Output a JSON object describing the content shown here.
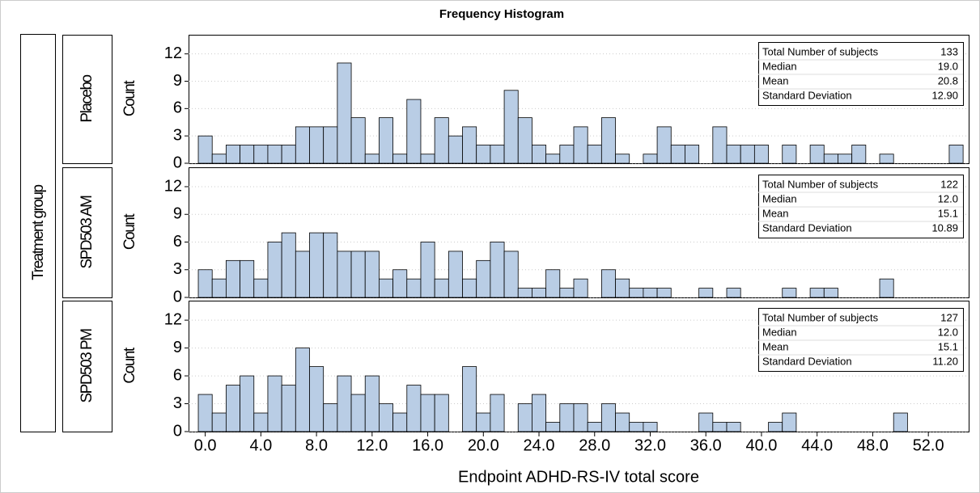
{
  "chart_data": {
    "type": "histogram",
    "title": "Frequency Histogram",
    "x_label": "Endpoint ADHD-RS-IV total score",
    "group_label": "Treatment group",
    "y_label": "Count",
    "color": "#b9cde5",
    "xlim": [
      -1.2,
      54.9
    ],
    "xticks": [
      {
        "value": 0,
        "label": "0.0"
      },
      {
        "value": 4,
        "label": "4.0"
      },
      {
        "value": 8,
        "label": "8.0"
      },
      {
        "value": 12,
        "label": "12.0"
      },
      {
        "value": 16,
        "label": "16.0"
      },
      {
        "value": 20,
        "label": "20.0"
      },
      {
        "value": 24,
        "label": "24.0"
      },
      {
        "value": 28,
        "label": "28.0"
      },
      {
        "value": 32,
        "label": "32.0"
      },
      {
        "value": 36,
        "label": "36.0"
      },
      {
        "value": 40,
        "label": "40.0"
      },
      {
        "value": 44,
        "label": "44.0"
      },
      {
        "value": 48,
        "label": "48.0"
      },
      {
        "value": 52,
        "label": "52.0"
      }
    ],
    "ylim": [
      0,
      14.1
    ],
    "yticks": [
      0,
      3,
      6,
      9,
      12
    ],
    "grid": true,
    "bins": [
      -0.5,
      0.5,
      1.5,
      2.5,
      3.5,
      4.5,
      5.5,
      6.5,
      7.5,
      8.5,
      9.5,
      10.5,
      11.5,
      12.5,
      13.5,
      14.5,
      15.5,
      16.5,
      17.5,
      18.5,
      19.5,
      20.5,
      21.5,
      22.5,
      23.5,
      24.5,
      25.5,
      26.5,
      27.5,
      28.5,
      29.5,
      30.5,
      31.5,
      32.5,
      33.5,
      34.5,
      35.5,
      36.5,
      37.5,
      38.5,
      39.5,
      40.5,
      41.5,
      42.5,
      43.5,
      44.5,
      45.5,
      46.5,
      47.5,
      48.5,
      49.5,
      50.5,
      51.5,
      52.5,
      53.5,
      54.5
    ],
    "panels": [
      {
        "name": "Placebo",
        "values": [
          3,
          1,
          2,
          2,
          2,
          2,
          2,
          4,
          4,
          4,
          11,
          5,
          1,
          5,
          1,
          7,
          1,
          5,
          3,
          4,
          2,
          2,
          8,
          5,
          2,
          1,
          2,
          4,
          2,
          5,
          1,
          0,
          1,
          4,
          2,
          2,
          0,
          4,
          2,
          2,
          2,
          0,
          2,
          0,
          2,
          1,
          1,
          2,
          0,
          1,
          0,
          0,
          0,
          0,
          2
        ],
        "stats": [
          [
            "Total Number of subjects",
            "133"
          ],
          [
            "Median",
            "19.0"
          ],
          [
            "Mean",
            "20.8"
          ],
          [
            "Standard Deviation",
            "12.90"
          ]
        ]
      },
      {
        "name": "SPD503 AM",
        "values": [
          3,
          2,
          4,
          4,
          2,
          6,
          7,
          5,
          7,
          7,
          5,
          5,
          5,
          2,
          3,
          2,
          6,
          2,
          5,
          2,
          4,
          6,
          5,
          1,
          1,
          3,
          1,
          2,
          0,
          3,
          2,
          1,
          1,
          1,
          0,
          0,
          1,
          0,
          1,
          0,
          0,
          0,
          1,
          0,
          1,
          1,
          0,
          0,
          0,
          2,
          0,
          0,
          0,
          0,
          0
        ],
        "stats": [
          [
            "Total Number of subjects",
            "122"
          ],
          [
            "Median",
            "12.0"
          ],
          [
            "Mean",
            "15.1"
          ],
          [
            "Standard Deviation",
            "10.89"
          ]
        ]
      },
      {
        "name": "SPD503 PM",
        "values": [
          4,
          2,
          5,
          6,
          2,
          6,
          5,
          9,
          7,
          3,
          6,
          4,
          6,
          3,
          2,
          5,
          4,
          4,
          0,
          7,
          2,
          4,
          0,
          3,
          4,
          1,
          3,
          3,
          1,
          3,
          2,
          1,
          1,
          0,
          0,
          0,
          2,
          1,
          1,
          0,
          0,
          1,
          2,
          0,
          0,
          0,
          0,
          0,
          0,
          0,
          2,
          0,
          0,
          0,
          0
        ],
        "stats": [
          [
            "Total Number of subjects",
            "127"
          ],
          [
            "Median",
            "12.0"
          ],
          [
            "Mean",
            "15.1"
          ],
          [
            "Standard Deviation",
            "11.20"
          ]
        ]
      }
    ]
  }
}
